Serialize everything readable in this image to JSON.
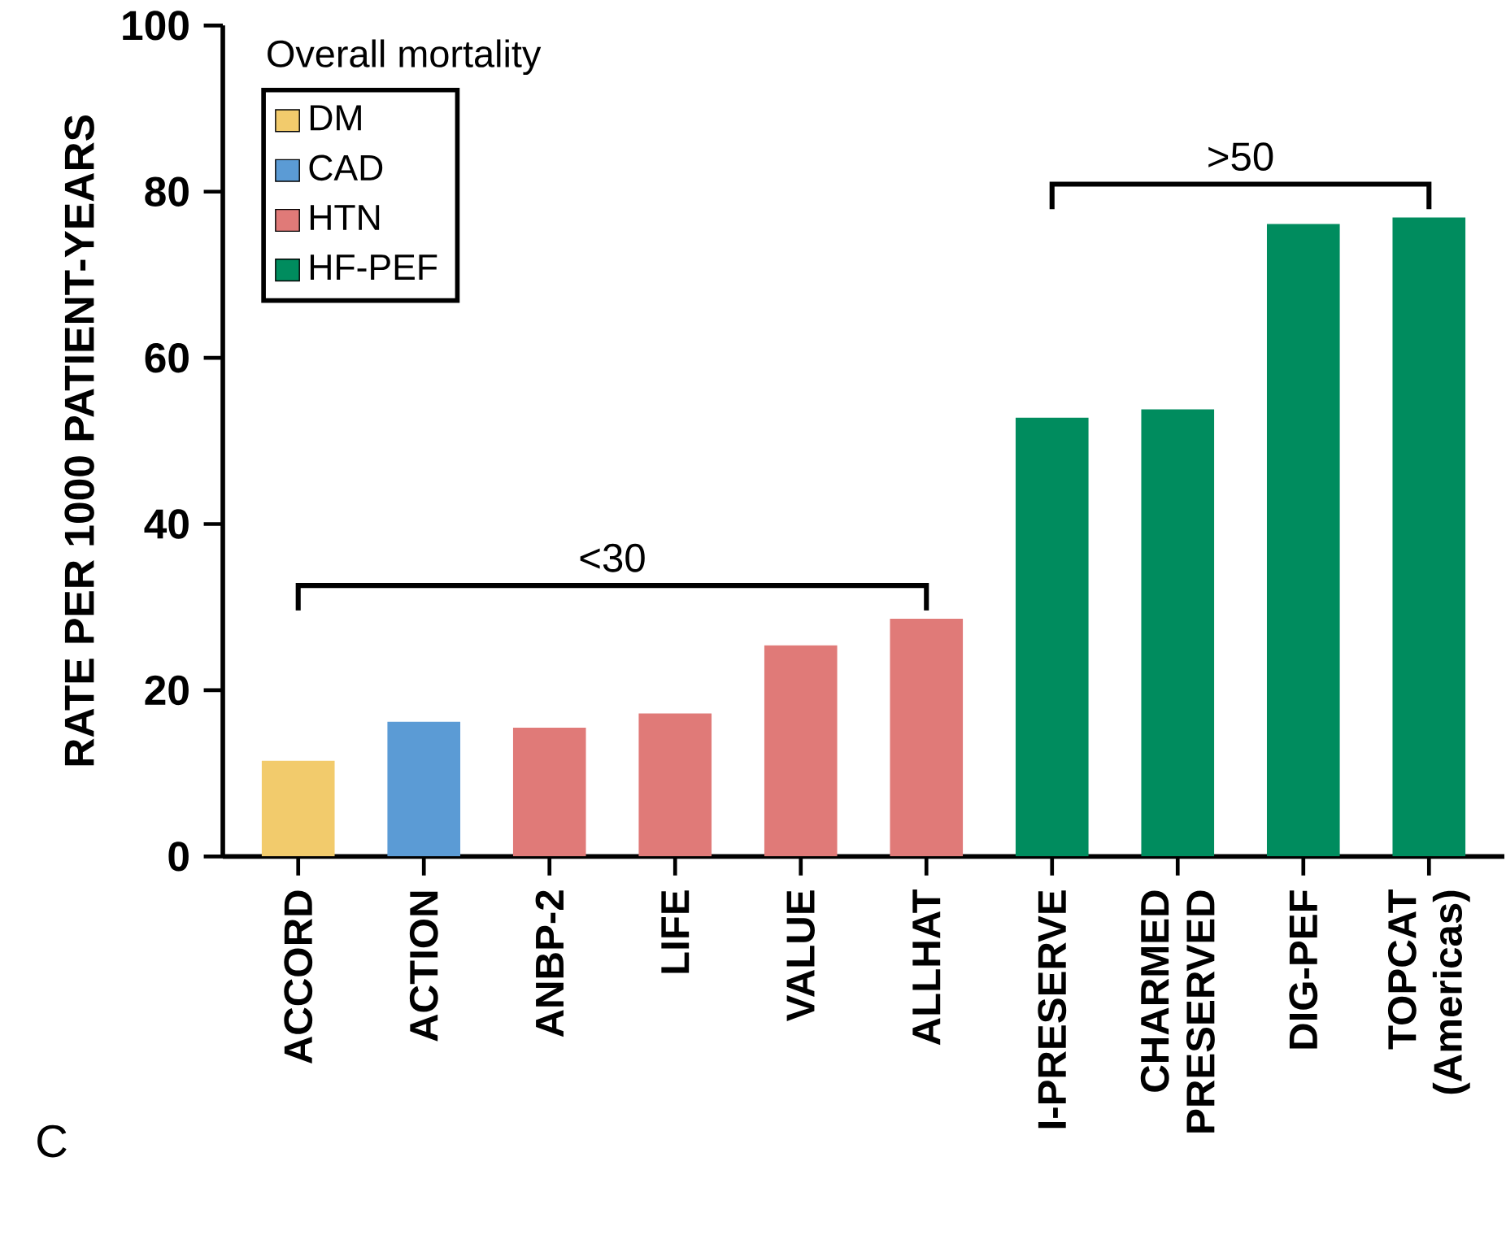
{
  "chart_data": {
    "type": "bar",
    "ylabel": "RATE PER 1000 PATIENT-YEARS",
    "legend_title": "Overall mortality",
    "legend": "top left",
    "categories": [
      "ACCORD",
      "ACTION",
      "ANBP-2",
      "LIFE",
      "VALUE",
      "ALLHAT",
      "I-PRESERVE",
      "CHARMED PRESERVED",
      "DIG-PEF",
      "TOPCAT (Americas)"
    ],
    "series": [
      {
        "name": "DM",
        "color": "#f2cb6c",
        "values": [
          11.5,
          null,
          null,
          null,
          null,
          null,
          null,
          null,
          null,
          null
        ]
      },
      {
        "name": "CAD",
        "color": "#5b9bd5",
        "values": [
          null,
          16.2,
          null,
          null,
          null,
          null,
          null,
          null,
          null,
          null
        ]
      },
      {
        "name": "HTN",
        "color": "#e07a78",
        "values": [
          null,
          null,
          15.5,
          17.2,
          25.4,
          28.6,
          null,
          null,
          null,
          null
        ]
      },
      {
        "name": "HF-PEF",
        "color": "#008c5e",
        "values": [
          null,
          null,
          null,
          null,
          null,
          null,
          52.8,
          53.8,
          76.1,
          76.9
        ]
      }
    ],
    "ylim": [
      0,
      100
    ],
    "yticks": [
      0,
      20,
      40,
      60,
      80,
      100
    ],
    "annotations": [
      "<30",
      ">50",
      "C"
    ]
  }
}
